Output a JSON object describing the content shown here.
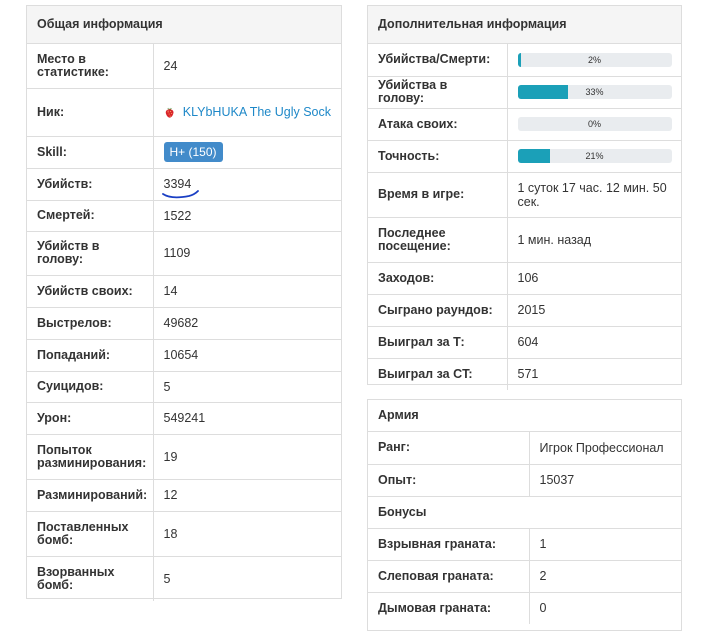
{
  "general": {
    "title": "Общая информация",
    "rank_position": {
      "label": "Место в статистике:",
      "value": "24"
    },
    "nick": {
      "label": "Ник:",
      "value": "KLYbHUKA The Ugly Sock"
    },
    "skill": {
      "label": "Skill:",
      "value": "H+ (150)"
    },
    "kills": {
      "label": "Убийств:",
      "value": "3394"
    },
    "deaths": {
      "label": "Смертей:",
      "value": "1522"
    },
    "headshots": {
      "label": "Убийств в голову:",
      "value": "1109"
    },
    "teamkills": {
      "label": "Убийств своих:",
      "value": "14"
    },
    "shots": {
      "label": "Выстрелов:",
      "value": "49682"
    },
    "hits": {
      "label": "Попаданий:",
      "value": "10654"
    },
    "suicides": {
      "label": "Суицидов:",
      "value": "5"
    },
    "damage": {
      "label": "Урон:",
      "value": "549241"
    },
    "defuse_attempts": {
      "label": "Попыток разминирования:",
      "value": "19"
    },
    "defuses": {
      "label": "Разминирований:",
      "value": "12"
    },
    "planted": {
      "label": "Поставленных бомб:",
      "value": "18"
    },
    "exploded": {
      "label": "Взорванных бомб:",
      "value": "5"
    }
  },
  "extra": {
    "title": "Дополнительная информация",
    "kd": {
      "label": "Убийства/Смерти:",
      "text": "2%",
      "percent": 2
    },
    "hs": {
      "label": "Убийства в голову:",
      "text": "33%",
      "percent": 33
    },
    "tk": {
      "label": "Атака своих:",
      "text": "0%",
      "percent": 0
    },
    "acc": {
      "label": "Точность:",
      "text": "21%",
      "percent": 21
    },
    "playtime": {
      "label": "Время в игре:",
      "value": "1 суток 17 час. 12 мин. 50 сек."
    },
    "last_seen": {
      "label": "Последнее посещение:",
      "value": "1 мин. назад"
    },
    "visits": {
      "label": "Заходов:",
      "value": "106"
    },
    "rounds": {
      "label": "Сыграно раундов:",
      "value": "2015"
    },
    "won_t": {
      "label": "Выиграл за Т:",
      "value": "604"
    },
    "won_ct": {
      "label": "Выиграл за CT:",
      "value": "571"
    }
  },
  "army": {
    "title": "Армия",
    "rank": {
      "label": "Ранг:",
      "value": "Игрок Профессионал"
    },
    "exp": {
      "label": "Опыт:",
      "value": "15037"
    },
    "bonuses_title": "Бонусы",
    "he": {
      "label": "Взрывная граната:",
      "value": "1"
    },
    "flash": {
      "label": "Слеповая граната:",
      "value": "2"
    },
    "smoke": {
      "label": "Дымовая граната:",
      "value": "0"
    }
  },
  "colors": {
    "accent": "#1ba0b8",
    "badge": "#428bca",
    "link": "#1e88c8"
  },
  "icons": {
    "nick": "strawberry-icon"
  }
}
